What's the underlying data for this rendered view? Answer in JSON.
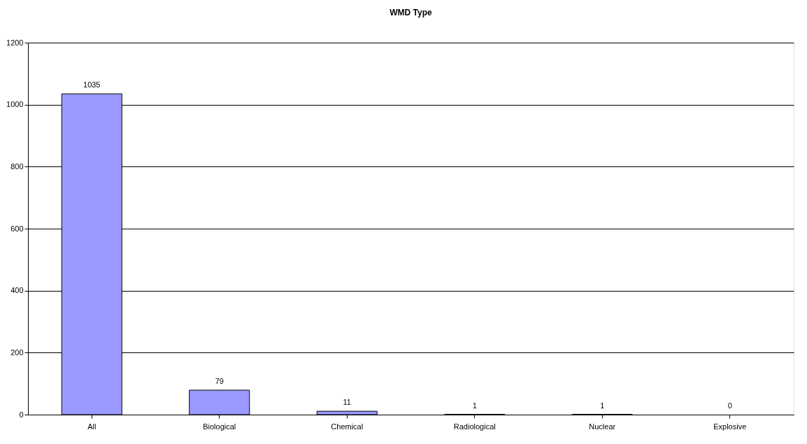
{
  "chart_data": {
    "type": "bar",
    "title": "WMD Type",
    "categories": [
      "All",
      "Biological",
      "Chemical",
      "Radiological",
      "Nuclear",
      "Explosive"
    ],
    "values": [
      1035,
      79,
      11,
      1,
      1,
      0
    ],
    "color": "#9999ff",
    "ylim": [
      0,
      1200
    ],
    "yticks": [
      0,
      200,
      400,
      600,
      800,
      1000,
      1200
    ],
    "grid": "y",
    "data_labels": true
  }
}
